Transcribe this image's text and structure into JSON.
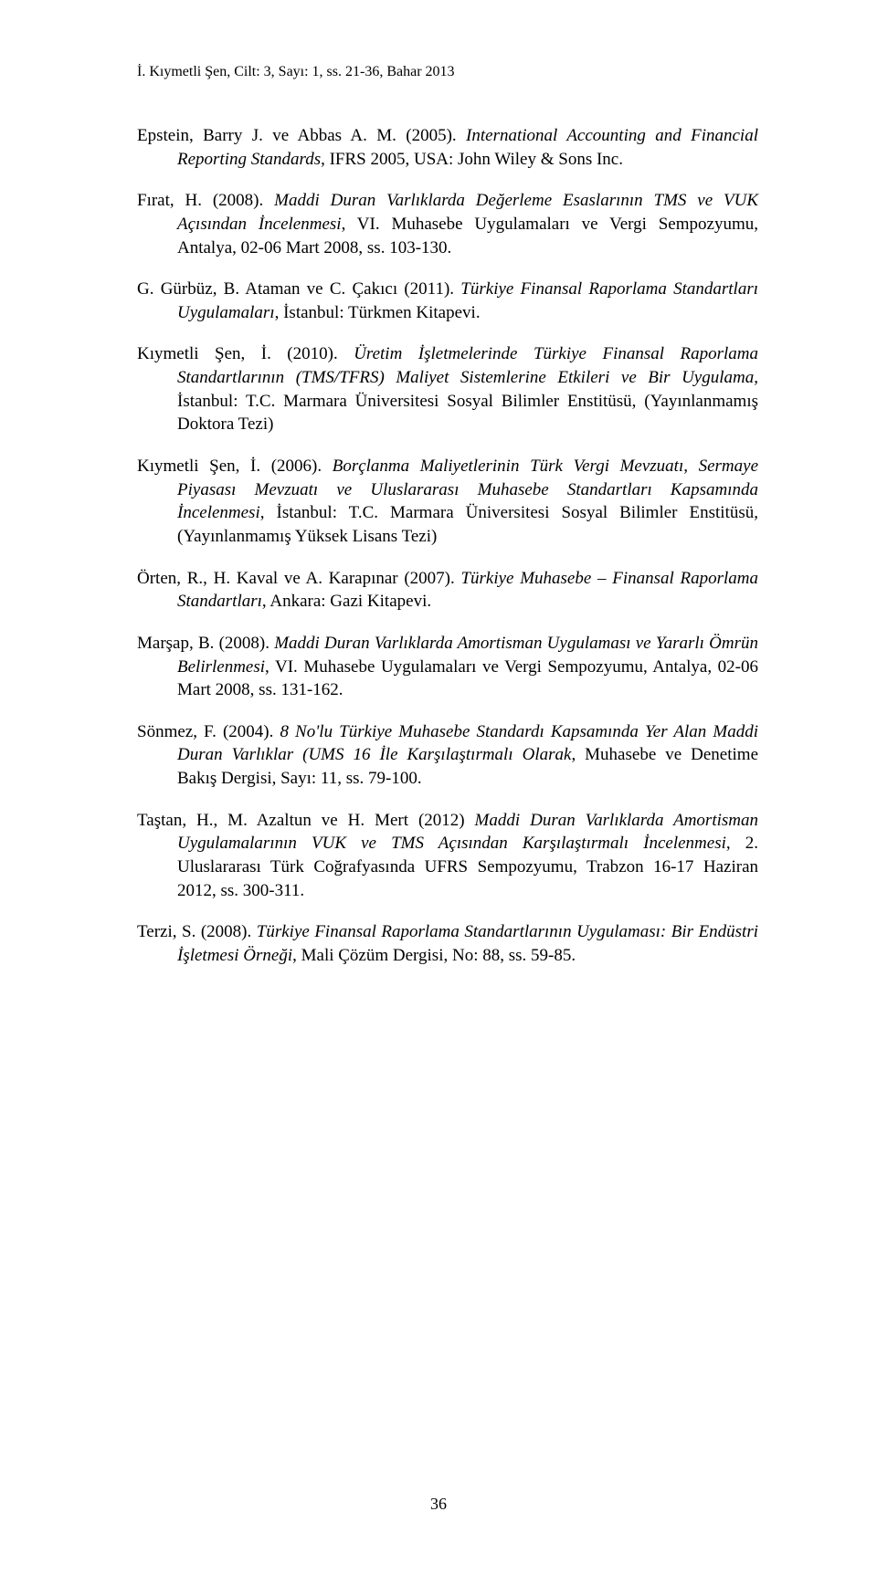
{
  "header": "İ. Kıymetli Şen, Cilt: 3, Sayı: 1, ss. 21-36, Bahar 2013",
  "page_number": "36",
  "refs": [
    {
      "pre": "Epstein, Barry J. ve Abbas A. M. (2005). ",
      "ital": "International Accounting and Financial Reporting Standards",
      "post": ", IFRS 2005, USA: John Wiley & Sons Inc."
    },
    {
      "pre": "Fırat, H. (2008). ",
      "ital": "Maddi Duran Varlıklarda Değerleme Esaslarının TMS ve VUK Açısından İncelenmesi",
      "post": ", VI. Muhasebe Uygulamaları ve Vergi Sempozyumu, Antalya, 02-06 Mart 2008, ss. 103-130."
    },
    {
      "pre": "G. Gürbüz, B. Ataman ve C. Çakıcı (2011). ",
      "ital": "Türkiye Finansal Raporlama Standartları Uygulamaları",
      "post": ", İstanbul: Türkmen Kitapevi."
    },
    {
      "pre": "Kıymetli Şen, İ. (2010). ",
      "ital": "Üretim İşletmelerinde Türkiye Finansal Raporlama Standartlarının (TMS/TFRS) Maliyet Sistemlerine Etkileri ve Bir Uygulama",
      "post": ", İstanbul: T.C. Marmara Üniversitesi Sosyal Bilimler Enstitüsü, (Yayınlanmamış Doktora Tezi)"
    },
    {
      "pre": "Kıymetli Şen, İ. (2006). ",
      "ital": "Borçlanma Maliyetlerinin Türk Vergi Mevzuatı, Sermaye Piyasası Mevzuatı ve Uluslararası Muhasebe Standartları Kapsamında İncelenmesi",
      "post": ", İstanbul: T.C. Marmara Üniversitesi Sosyal Bilimler Enstitüsü, (Yayınlanmamış Yüksek Lisans Tezi)"
    },
    {
      "pre": "Örten, R., H. Kaval ve A. Karapınar (2007). ",
      "ital": "Türkiye Muhasebe – Finansal Raporlama Standartları",
      "post": ", Ankara: Gazi Kitapevi."
    },
    {
      "pre": "Marşap, B. (2008). ",
      "ital": "Maddi Duran Varlıklarda Amortisman Uygulaması ve Yararlı Ömrün Belirlenmesi",
      "post": ", VI. Muhasebe Uygulamaları ve Vergi Sempozyumu, Antalya, 02-06 Mart 2008, ss. 131-162."
    },
    {
      "pre": "Sönmez, F. (2004). ",
      "ital": "8 No'lu Türkiye Muhasebe Standardı Kapsamında Yer Alan Maddi Duran Varlıklar (UMS 16 İle Karşılaştırmalı Olarak",
      "post": ", Muhasebe ve Denetime Bakış Dergisi, Sayı: 11, ss. 79-100."
    },
    {
      "pre": "Taştan, H., M. Azaltun ve H. Mert (2012) ",
      "ital": "Maddi Duran Varlıklarda Amortisman Uygulamalarının VUK ve TMS Açısından Karşılaştırmalı İncelenmesi",
      "post": ", 2. Uluslararası Türk Coğrafyasında UFRS Sempozyumu, Trabzon 16-17 Haziran 2012, ss. 300-311."
    },
    {
      "pre": "Terzi, S. (2008). ",
      "ital": "Türkiye Finansal Raporlama Standartlarının Uygulaması: Bir Endüstri İşletmesi Örneği",
      "post": ", Mali Çözüm Dergisi, No: 88, ss. 59-85."
    }
  ]
}
